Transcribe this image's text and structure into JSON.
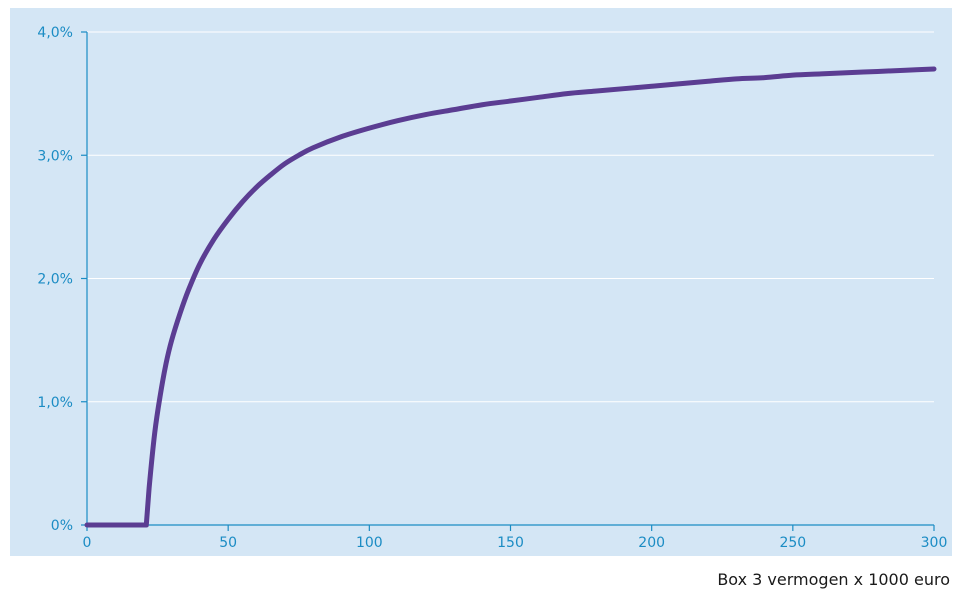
{
  "chart_data": {
    "type": "line",
    "title": "",
    "xlabel": "Box 3 vermogen x 1000 euro",
    "ylabel": "",
    "xlim": [
      0,
      300
    ],
    "ylim": [
      0,
      4
    ],
    "x_ticks": [
      0,
      50,
      100,
      150,
      200,
      250,
      300
    ],
    "x_tick_labels": [
      "0",
      "50",
      "100",
      "150",
      "200",
      "250",
      "300"
    ],
    "y_ticks": [
      0,
      1,
      2,
      3,
      4
    ],
    "y_tick_labels": [
      "0%",
      "1,0%",
      "2,0%",
      "3,0%",
      "4,0%"
    ],
    "grid": true,
    "legend": "none",
    "series": [
      {
        "x": [
          0,
          10,
          20,
          21,
          22,
          24,
          26,
          28,
          30,
          33,
          36,
          40,
          45,
          50,
          55,
          60,
          65,
          70,
          75,
          80,
          90,
          100,
          110,
          120,
          130,
          140,
          150,
          160,
          170,
          180,
          190,
          200,
          210,
          220,
          230,
          240,
          250,
          260,
          270,
          280,
          290,
          300
        ],
        "values": [
          0,
          0,
          0,
          0,
          0.3,
          0.75,
          1.06,
          1.31,
          1.5,
          1.72,
          1.91,
          2.12,
          2.32,
          2.48,
          2.62,
          2.74,
          2.84,
          2.93,
          3.0,
          3.06,
          3.15,
          3.22,
          3.28,
          3.33,
          3.37,
          3.41,
          3.44,
          3.47,
          3.5,
          3.52,
          3.54,
          3.56,
          3.58,
          3.6,
          3.62,
          3.63,
          3.65,
          3.66,
          3.67,
          3.68,
          3.69,
          3.7
        ]
      }
    ]
  },
  "colors": {
    "plot_background": "#d4e6f5",
    "line": "#5b3d92",
    "axis": "#1b8cc4",
    "gridline": "#ffffff",
    "tick_text": "#1b8cc4"
  }
}
